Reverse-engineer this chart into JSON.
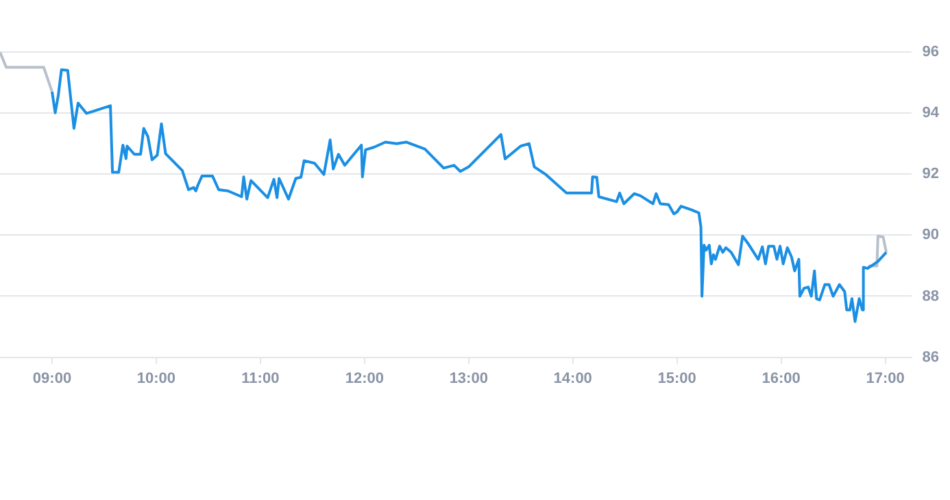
{
  "chart_data": {
    "type": "line",
    "xlim": [
      8.5,
      17.25
    ],
    "ylim": [
      86,
      96
    ],
    "xticks": [
      {
        "value": 9,
        "label": "09:00"
      },
      {
        "value": 10,
        "label": "10:00"
      },
      {
        "value": 11,
        "label": "11:00"
      },
      {
        "value": 12,
        "label": "12:00"
      },
      {
        "value": 13,
        "label": "13:00"
      },
      {
        "value": 14,
        "label": "14:00"
      },
      {
        "value": 15,
        "label": "15:00"
      },
      {
        "value": 16,
        "label": "16:00"
      },
      {
        "value": 17,
        "label": "17:00"
      }
    ],
    "yticks": [
      86,
      88,
      90,
      92,
      94,
      96
    ],
    "grid": "y",
    "legend": false,
    "marker": "none",
    "line_style": "solid",
    "series": [
      {
        "color": "#b8c0cc",
        "x": [
          8.5,
          8.56,
          8.92,
          9.0
        ],
        "values": [
          96.0,
          95.5,
          95.5,
          94.7
        ]
      },
      {
        "color": "#b8c0cc",
        "x": [
          16.83,
          16.85,
          16.92,
          16.93,
          16.98,
          17.01
        ],
        "values": [
          88.91,
          88.99,
          88.99,
          89.97,
          89.94,
          89.44
        ]
      },
      {
        "color": "#1a8fe3",
        "x": [
          9.0,
          9.03,
          9.06,
          9.09,
          9.15,
          9.21,
          9.25,
          9.33,
          9.56,
          9.58,
          9.64,
          9.68,
          9.71,
          9.72,
          9.79,
          9.85,
          9.88,
          9.92,
          9.96,
          10.01,
          10.05,
          10.09,
          10.25,
          10.31,
          10.36,
          10.38,
          10.4,
          10.44,
          10.54,
          10.6,
          10.69,
          10.82,
          10.84,
          10.87,
          10.91,
          11.07,
          11.13,
          11.16,
          11.18,
          11.27,
          11.34,
          11.39,
          11.42,
          11.52,
          11.61,
          11.67,
          11.7,
          11.75,
          11.81,
          11.97,
          11.98,
          12.01,
          12.09,
          12.2,
          12.31,
          12.4,
          12.58,
          12.76,
          12.86,
          12.92,
          13.0,
          13.31,
          13.35,
          13.5,
          13.58,
          13.63,
          13.74,
          13.94,
          14.18,
          14.19,
          14.23,
          14.25,
          14.42,
          14.45,
          14.49,
          14.59,
          14.65,
          14.77,
          14.8,
          14.84,
          14.92,
          14.97,
          15.0,
          15.04,
          15.14,
          15.21,
          15.23,
          15.24,
          15.26,
          15.28,
          15.31,
          15.33,
          15.35,
          15.37,
          15.41,
          15.44,
          15.47,
          15.52,
          15.59,
          15.63,
          15.68,
          15.78,
          15.82,
          15.85,
          15.88,
          15.93,
          15.96,
          15.99,
          16.02,
          16.06,
          16.1,
          16.13,
          16.17,
          16.18,
          16.22,
          16.26,
          16.29,
          16.32,
          16.34,
          16.37,
          16.42,
          16.46,
          16.5,
          16.56,
          16.61,
          16.63,
          16.66,
          16.68,
          16.71,
          16.73,
          16.75,
          16.78,
          16.79,
          16.83,
          16.93,
          17.01
        ],
        "values": [
          94.7,
          94.01,
          94.59,
          95.42,
          95.4,
          93.5,
          94.33,
          93.99,
          94.24,
          92.06,
          92.06,
          92.95,
          92.51,
          92.92,
          92.65,
          92.65,
          93.5,
          93.23,
          92.47,
          92.62,
          93.65,
          92.67,
          92.12,
          91.49,
          91.56,
          91.45,
          91.64,
          91.94,
          91.94,
          91.49,
          91.45,
          91.26,
          91.91,
          91.18,
          91.79,
          91.23,
          91.83,
          91.23,
          91.86,
          91.18,
          91.86,
          91.9,
          92.44,
          92.36,
          91.99,
          93.12,
          92.17,
          92.65,
          92.29,
          92.95,
          91.91,
          92.8,
          92.88,
          93.05,
          93.0,
          93.05,
          92.82,
          92.2,
          92.29,
          92.09,
          92.24,
          93.3,
          92.5,
          92.92,
          93.0,
          92.24,
          91.99,
          91.38,
          91.38,
          91.91,
          91.9,
          91.26,
          91.1,
          91.38,
          91.03,
          91.36,
          91.29,
          91.03,
          91.36,
          91.03,
          91.0,
          90.7,
          90.76,
          90.95,
          90.83,
          90.73,
          90.27,
          88.0,
          89.67,
          89.51,
          89.67,
          89.06,
          89.36,
          89.21,
          89.64,
          89.44,
          89.59,
          89.44,
          89.03,
          89.97,
          89.74,
          89.21,
          89.62,
          89.06,
          89.64,
          89.64,
          89.21,
          89.64,
          89.06,
          89.59,
          89.29,
          88.83,
          89.21,
          88.0,
          88.26,
          88.3,
          88.0,
          88.83,
          87.92,
          87.88,
          88.38,
          88.38,
          88.0,
          88.38,
          88.15,
          87.55,
          87.55,
          87.92,
          87.17,
          87.55,
          87.92,
          87.55,
          88.95,
          88.91,
          89.14,
          89.44
        ]
      }
    ]
  }
}
